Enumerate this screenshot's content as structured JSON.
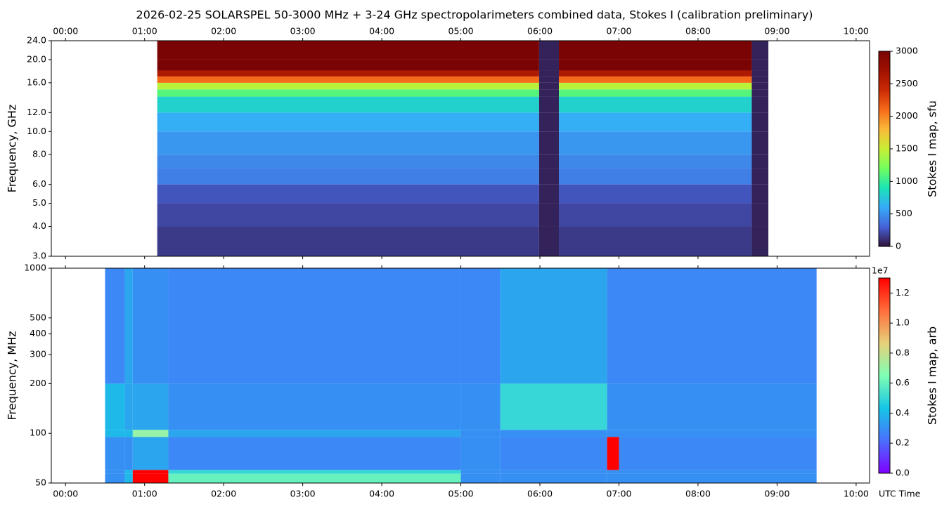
{
  "chart_data": [
    {
      "type": "heatmap",
      "title": "2026-02-25  SOLARSPEL  50-3000 MHz  +  3-24 GHz  spectropolarimeters combined data,  Stokes I  (calibration preliminary)",
      "ylabel": "Frequency, GHz",
      "colorbar_label": "Stokes I map, sfu",
      "xlim": [
        -0.18,
        10.17
      ],
      "xticks": [
        {
          "value": 0,
          "label": "00:00"
        },
        {
          "value": 1,
          "label": "01:00"
        },
        {
          "value": 2,
          "label": "02:00"
        },
        {
          "value": 3,
          "label": "03:00"
        },
        {
          "value": 4,
          "label": "04:00"
        },
        {
          "value": 5,
          "label": "05:00"
        },
        {
          "value": 6,
          "label": "06:00"
        },
        {
          "value": 7,
          "label": "07:00"
        },
        {
          "value": 8,
          "label": "08:00"
        },
        {
          "value": 9,
          "label": "09:00"
        },
        {
          "value": 10,
          "label": "10:00"
        }
      ],
      "xtick_side": "top",
      "yscale": "log",
      "ylim": [
        3,
        24
      ],
      "yticks": [
        {
          "value": 3,
          "label": "3.0"
        },
        {
          "value": 4,
          "label": "4.0"
        },
        {
          "value": 5,
          "label": "5.0"
        },
        {
          "value": 6,
          "label": "6.0"
        },
        {
          "value": 8,
          "label": "8.0"
        },
        {
          "value": 10,
          "label": "10.0"
        },
        {
          "value": 12,
          "label": "12.0"
        },
        {
          "value": 16,
          "label": "16.0"
        },
        {
          "value": 20,
          "label": "20.0"
        },
        {
          "value": 24,
          "label": "24.0"
        }
      ],
      "colormap": "turbo",
      "clim": [
        0,
        3000
      ],
      "cticks": [
        0,
        500,
        1000,
        1500,
        2000,
        2500,
        3000
      ],
      "x_edges": [
        1.16,
        5.99,
        6.24,
        8.68,
        8.89
      ],
      "y_edges": [
        3,
        4,
        5,
        6,
        7,
        8,
        10,
        12,
        14,
        15,
        16,
        17,
        18,
        20,
        24
      ],
      "z": [
        [
          150,
          60,
          150,
          60
        ],
        [
          200,
          60,
          200,
          60
        ],
        [
          250,
          60,
          250,
          60
        ],
        [
          420,
          60,
          420,
          60
        ],
        [
          460,
          60,
          460,
          60
        ],
        [
          520,
          60,
          520,
          60
        ],
        [
          620,
          60,
          620,
          60
        ],
        [
          800,
          60,
          800,
          60
        ],
        [
          1100,
          60,
          1100,
          60
        ],
        [
          1450,
          60,
          1450,
          60
        ],
        [
          2100,
          60,
          2100,
          60
        ],
        [
          2600,
          60,
          2600,
          60
        ],
        [
          3000,
          60,
          3000,
          60
        ],
        [
          3000,
          60,
          3000,
          60
        ]
      ]
    },
    {
      "type": "heatmap",
      "ylabel": "Frequency, MHz",
      "xlabel": "UTC Time",
      "colorbar_label": "Stokes I map, arb",
      "colorbar_offset": "1e7",
      "xlim": [
        -0.18,
        10.17
      ],
      "xticks": [
        {
          "value": 0,
          "label": "00:00"
        },
        {
          "value": 1,
          "label": "01:00"
        },
        {
          "value": 2,
          "label": "02:00"
        },
        {
          "value": 3,
          "label": "03:00"
        },
        {
          "value": 4,
          "label": "04:00"
        },
        {
          "value": 5,
          "label": "05:00"
        },
        {
          "value": 6,
          "label": "06:00"
        },
        {
          "value": 7,
          "label": "07:00"
        },
        {
          "value": 8,
          "label": "08:00"
        },
        {
          "value": 9,
          "label": "09:00"
        },
        {
          "value": 10,
          "label": "10:00"
        }
      ],
      "xtick_side": "bottom",
      "yscale": "log",
      "ylim": [
        50,
        1000
      ],
      "yticks": [
        50,
        100,
        200,
        300,
        400,
        500,
        1000
      ],
      "colormap": "rainbow",
      "clim": [
        0,
        13000000
      ],
      "cticks": [
        {
          "value": 0,
          "label": "0.0"
        },
        {
          "value": 2000000,
          "label": "0.2"
        },
        {
          "value": 4000000,
          "label": "0.4"
        },
        {
          "value": 6000000,
          "label": "0.6"
        },
        {
          "value": 8000000,
          "label": "0.8"
        },
        {
          "value": 10000000,
          "label": "1.0"
        },
        {
          "value": 12000000,
          "label": "1.2"
        }
      ],
      "x_edges": [
        0.5,
        0.75,
        0.85,
        1.3,
        5.0,
        5.5,
        6.85,
        7.0,
        9.5
      ],
      "y_edges": [
        50,
        57,
        60,
        95,
        105,
        200,
        1000
      ],
      "z": [
        [
          3000000,
          4000000,
          13000000,
          6000000,
          3000000,
          3000000,
          3000000,
          3000000
        ],
        [
          3000000,
          4000000,
          13000000,
          5000000,
          3000000,
          3000000,
          3000000,
          3000000
        ],
        [
          3000000,
          3000000,
          3500000,
          2800000,
          3000000,
          2800000,
          13000000,
          2800000
        ],
        [
          4000000,
          4000000,
          7000000,
          3500000,
          3000000,
          3000000,
          3000000,
          3000000
        ],
        [
          4000000,
          3500000,
          3500000,
          3000000,
          3000000,
          5000000,
          3000000,
          3000000
        ],
        [
          2800000,
          3500000,
          3000000,
          2800000,
          2800000,
          3500000,
          2800000,
          2800000
        ]
      ]
    }
  ]
}
